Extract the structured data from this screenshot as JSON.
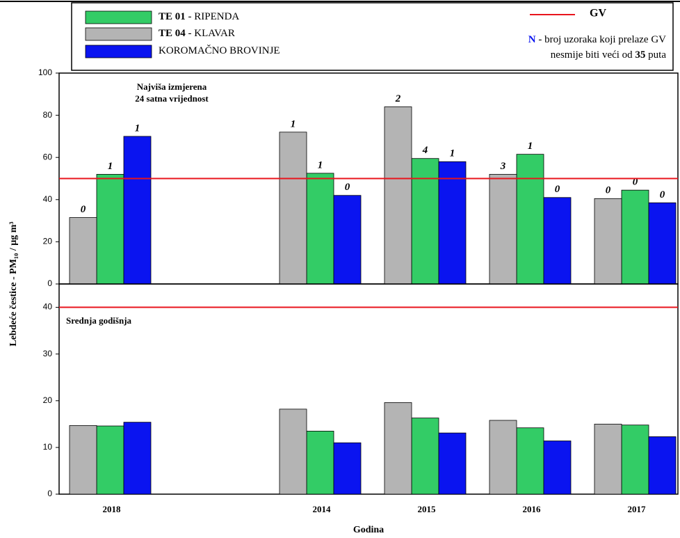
{
  "chart_data": [
    {
      "type": "bar",
      "ylabel": "Lebdeće čestice - PM₁₀ / µg m³",
      "annotation": [
        "Najviša izmjerena",
        "24 satna vrijednost"
      ],
      "note": [
        "N - broj uzoraka koji prelaze GV",
        "nesmije biti veći od 35 puta"
      ],
      "reference": {
        "name": "GV",
        "value": 50,
        "color": "#e8141c"
      },
      "ylim": [
        0,
        100
      ],
      "yticks": [
        0,
        20,
        40,
        60,
        80,
        100
      ],
      "series": [
        {
          "name": "TE 01 - RIPENDA",
          "color": "#33cc66",
          "values": [
            52,
            null,
            52.5,
            59.5,
            61.5,
            44.5
          ],
          "n": [
            1,
            null,
            1,
            4,
            1,
            0
          ]
        },
        {
          "name": "TE 04 - KLAVAR",
          "color": "#b4b4b4",
          "values": [
            31.5,
            null,
            72,
            84,
            52,
            40.5
          ],
          "n": [
            0,
            null,
            1,
            2,
            3,
            0
          ]
        },
        {
          "name": "KOROMAČNO BROVINJE",
          "color": "#0a14f0",
          "values": [
            70,
            null,
            42,
            58,
            41,
            38.5
          ],
          "n": [
            1,
            null,
            0,
            1,
            0,
            0
          ]
        }
      ]
    },
    {
      "type": "bar",
      "xlabel": "Godina",
      "annotation": "Srednja godišnja",
      "categories": [
        "2018",
        null,
        "2014",
        "2015",
        "2016",
        "2017"
      ],
      "reference": {
        "value": 40,
        "color": "#e8141c"
      },
      "ylim": [
        0,
        45
      ],
      "yticks": [
        0,
        10,
        20,
        30,
        40
      ],
      "series": [
        {
          "color": "#33cc66",
          "values": [
            14.6,
            null,
            13.5,
            16.3,
            14.2,
            14.8
          ]
        },
        {
          "color": "#b4b4b4",
          "values": [
            14.7,
            null,
            18.2,
            19.6,
            15.8,
            15
          ]
        },
        {
          "color": "#0a14f0",
          "values": [
            15.4,
            null,
            11,
            13.1,
            11.4,
            12.3
          ]
        }
      ]
    }
  ]
}
